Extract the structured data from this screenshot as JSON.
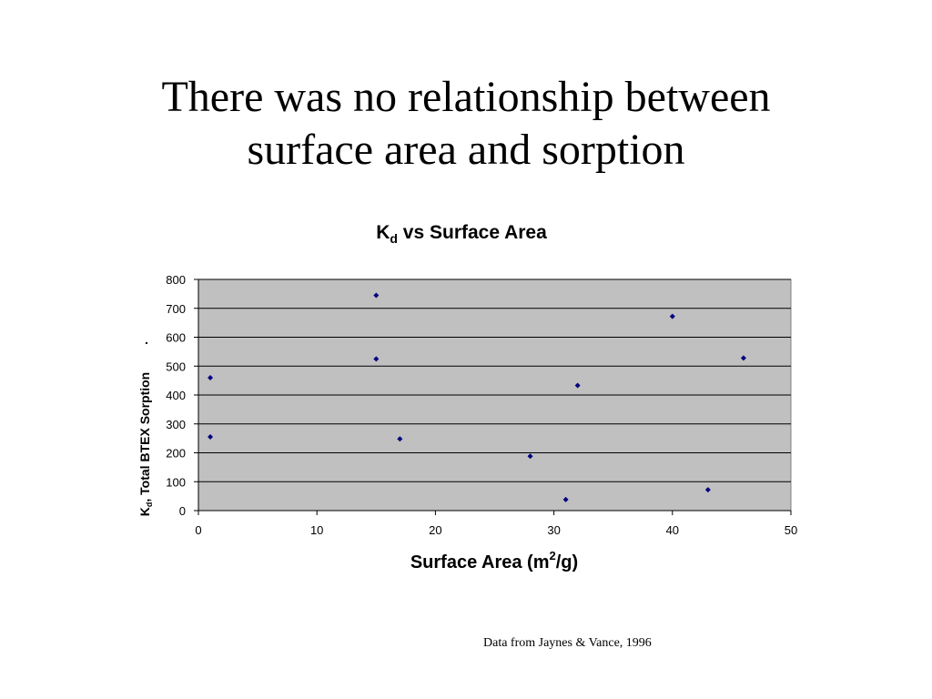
{
  "slide": {
    "title_line1": "There was no relationship between",
    "title_line2": "surface area and sorption",
    "footnote": "Data from Jaynes & Vance, 1996"
  },
  "chart_data": {
    "type": "scatter",
    "title_main": "K",
    "title_sub": "d",
    "title_rest": " vs Surface Area",
    "xlabel_main": "Surface Area (m",
    "xlabel_sup": "2",
    "xlabel_rest": "/g)",
    "ylabel_main": "K",
    "ylabel_sub": "d",
    "ylabel_rest": ", Total BTEX Sorption",
    "xlim": [
      0,
      50
    ],
    "ylim": [
      0,
      800
    ],
    "x_ticks": [
      0,
      10,
      20,
      30,
      40,
      50
    ],
    "y_ticks": [
      0,
      100,
      200,
      300,
      400,
      500,
      600,
      700,
      800
    ],
    "grid": "horizontal",
    "legend": "none",
    "plot_background": "#c0c0c0",
    "marker_color": "#000080",
    "points": [
      {
        "x": 1,
        "y": 460
      },
      {
        "x": 1,
        "y": 255
      },
      {
        "x": 15,
        "y": 745
      },
      {
        "x": 15,
        "y": 525
      },
      {
        "x": 17,
        "y": 248
      },
      {
        "x": 28,
        "y": 188
      },
      {
        "x": 31,
        "y": 38
      },
      {
        "x": 32,
        "y": 433
      },
      {
        "x": 40,
        "y": 672
      },
      {
        "x": 43,
        "y": 72
      },
      {
        "x": 46,
        "y": 528
      }
    ]
  }
}
